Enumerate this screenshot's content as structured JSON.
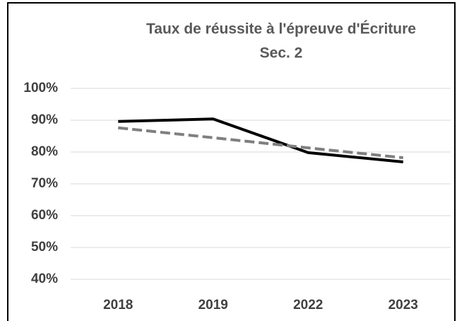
{
  "chart_data": {
    "type": "line",
    "title": "Taux de réussite à l'épreuve d'Écriture",
    "subtitle": "Sec. 2",
    "categories": [
      "2018",
      "2019",
      "2022",
      "2023"
    ],
    "series": [
      {
        "color": "#000000",
        "dash": false,
        "values": [
          89.6,
          90.4,
          79.8,
          76.9
        ]
      },
      {
        "color": "#7f7f7f",
        "dash": true,
        "values": [
          87.6,
          84.5,
          81.3,
          78.2
        ]
      }
    ],
    "ylim": [
      40,
      100
    ],
    "yticks": [
      {
        "value": 40,
        "label": "40%"
      },
      {
        "value": 50,
        "label": "50%"
      },
      {
        "value": 60,
        "label": "60%"
      },
      {
        "value": 70,
        "label": "70%"
      },
      {
        "value": 80,
        "label": "80%"
      },
      {
        "value": 90,
        "label": "90%"
      },
      {
        "value": 100,
        "label": "100%"
      }
    ],
    "grid": true
  }
}
